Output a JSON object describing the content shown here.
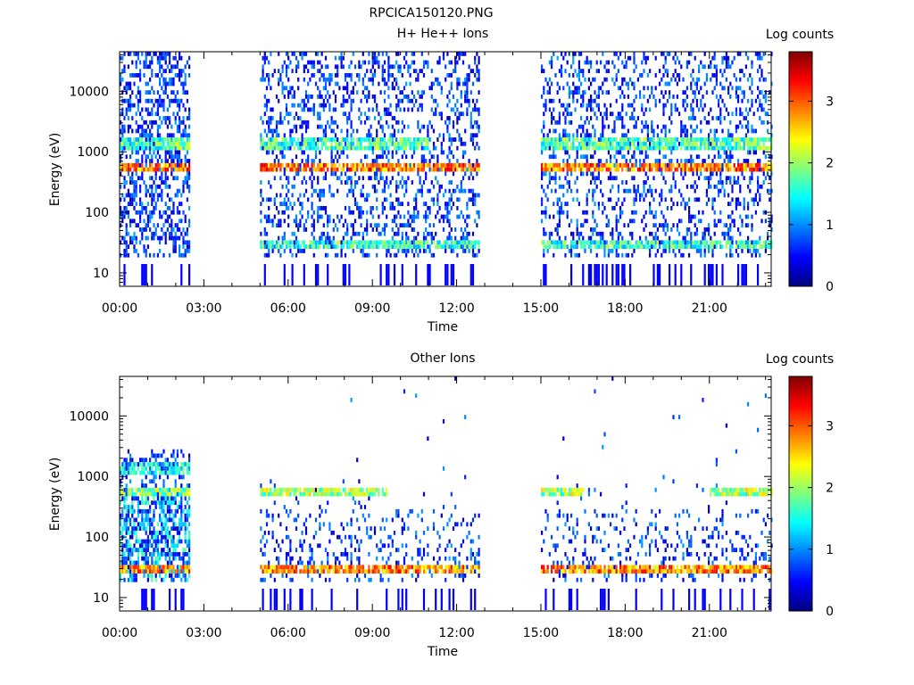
{
  "figure_title": "RPCICA150120.PNG",
  "chart_data": [
    {
      "type": "heatmap",
      "title": "H+ He++ Ions",
      "xlabel": "Time",
      "ylabel": "Energy (eV)",
      "colorbar_label": "Log counts",
      "colorbar_ticks": [
        "0",
        "1",
        "2",
        "3"
      ],
      "colorbar_range": [
        0,
        3.8
      ],
      "xticks": [
        "00:00",
        "03:00",
        "06:00",
        "09:00",
        "12:00",
        "15:00",
        "18:00",
        "21:00"
      ],
      "xlim_hours": [
        0,
        23.2
      ],
      "yscale": "log",
      "ylim": [
        6,
        45000
      ],
      "yticks": [
        10,
        100,
        1000,
        10000
      ],
      "ytick_labels": [
        "10",
        "100",
        "1000",
        "10000"
      ],
      "data_intervals_hours": [
        [
          0.0,
          2.45
        ],
        [
          5.0,
          12.8
        ],
        [
          15.0,
          23.2
        ]
      ],
      "bands": [
        {
          "energy_eV": 1300,
          "log_counts": 1.7,
          "intervals_hours": [
            [
              0.0,
              2.45
            ],
            [
              5.0,
              11.0
            ],
            [
              15.0,
              23.2
            ]
          ]
        },
        {
          "energy_eV": 550,
          "log_counts": 2.9,
          "intervals_hours": [
            [
              0.0,
              2.45
            ],
            [
              5.0,
              12.8
            ],
            [
              15.0,
              23.2
            ]
          ]
        },
        {
          "energy_eV": 30,
          "log_counts": 1.6,
          "intervals_hours": [
            [
              5.0,
              12.8
            ],
            [
              15.0,
              23.2
            ]
          ]
        }
      ],
      "colormap": [
        "#00007f",
        "#0000ff",
        "#007fff",
        "#00ffff",
        "#7fff7f",
        "#ffff00",
        "#ff7f00",
        "#ff0000",
        "#7f0000"
      ]
    },
    {
      "type": "heatmap",
      "title": "Other Ions",
      "xlabel": "Time",
      "ylabel": "Energy (eV)",
      "colorbar_label": "Log counts",
      "colorbar_ticks": [
        "0",
        "1",
        "2",
        "3"
      ],
      "colorbar_range": [
        0,
        3.8
      ],
      "xticks": [
        "00:00",
        "03:00",
        "06:00",
        "09:00",
        "12:00",
        "15:00",
        "18:00",
        "21:00"
      ],
      "xlim_hours": [
        0,
        23.2
      ],
      "yscale": "log",
      "ylim": [
        6,
        45000
      ],
      "yticks": [
        10,
        100,
        1000,
        10000
      ],
      "ytick_labels": [
        "10",
        "100",
        "1000",
        "10000"
      ],
      "data_intervals_hours": [
        [
          0.0,
          2.45
        ],
        [
          5.0,
          12.8
        ],
        [
          15.0,
          23.2
        ]
      ],
      "bands": [
        {
          "energy_eV": 1300,
          "log_counts": 1.3,
          "intervals_hours": [
            [
              0.0,
              2.45
            ]
          ]
        },
        {
          "energy_eV": 550,
          "log_counts": 2.0,
          "intervals_hours": [
            [
              0.0,
              2.45
            ],
            [
              5.0,
              9.5
            ],
            [
              15.0,
              16.5
            ],
            [
              21.0,
              23.2
            ]
          ]
        },
        {
          "energy_eV": 30,
          "log_counts": 2.8,
          "intervals_hours": [
            [
              0.0,
              2.45
            ],
            [
              5.0,
              12.8
            ],
            [
              15.0,
              23.2
            ]
          ]
        }
      ],
      "colormap": [
        "#00007f",
        "#0000ff",
        "#007fff",
        "#00ffff",
        "#7fff7f",
        "#ffff00",
        "#ff7f00",
        "#ff0000",
        "#7f0000"
      ]
    }
  ]
}
